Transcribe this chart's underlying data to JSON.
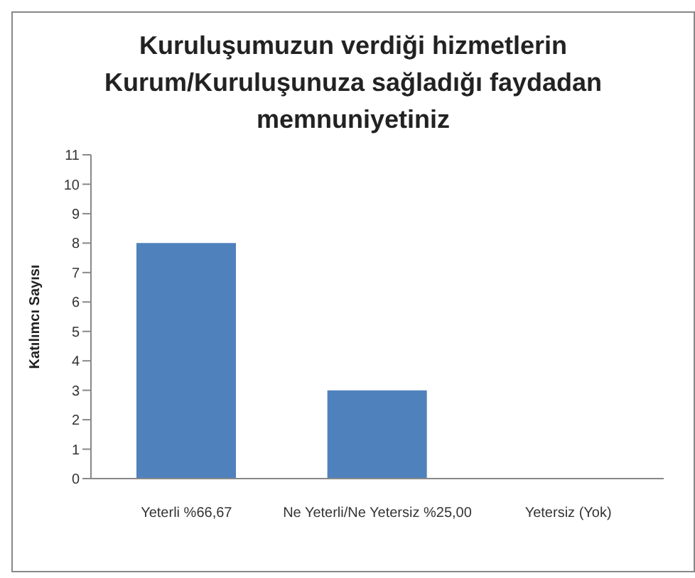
{
  "chart_data": {
    "type": "bar",
    "title": "Kuruluşumuzun verdiği hizmetlerin Kurum/Kuruluşunuza sağladığı faydadan memnuniyetiniz",
    "ylabel": "Katılımcı Sayısı",
    "categories": [
      "Yeterli %66,67",
      "Ne Yeterli/Ne Yetersiz %25,00",
      "Yetersiz (Yok)"
    ],
    "values": [
      8,
      3,
      0
    ],
    "color": "#4f81bd",
    "ylim": [
      0,
      11
    ],
    "yticks": [
      0,
      1,
      2,
      3,
      4,
      5,
      6,
      7,
      8,
      9,
      10,
      11
    ],
    "grid": false,
    "legend": false
  }
}
